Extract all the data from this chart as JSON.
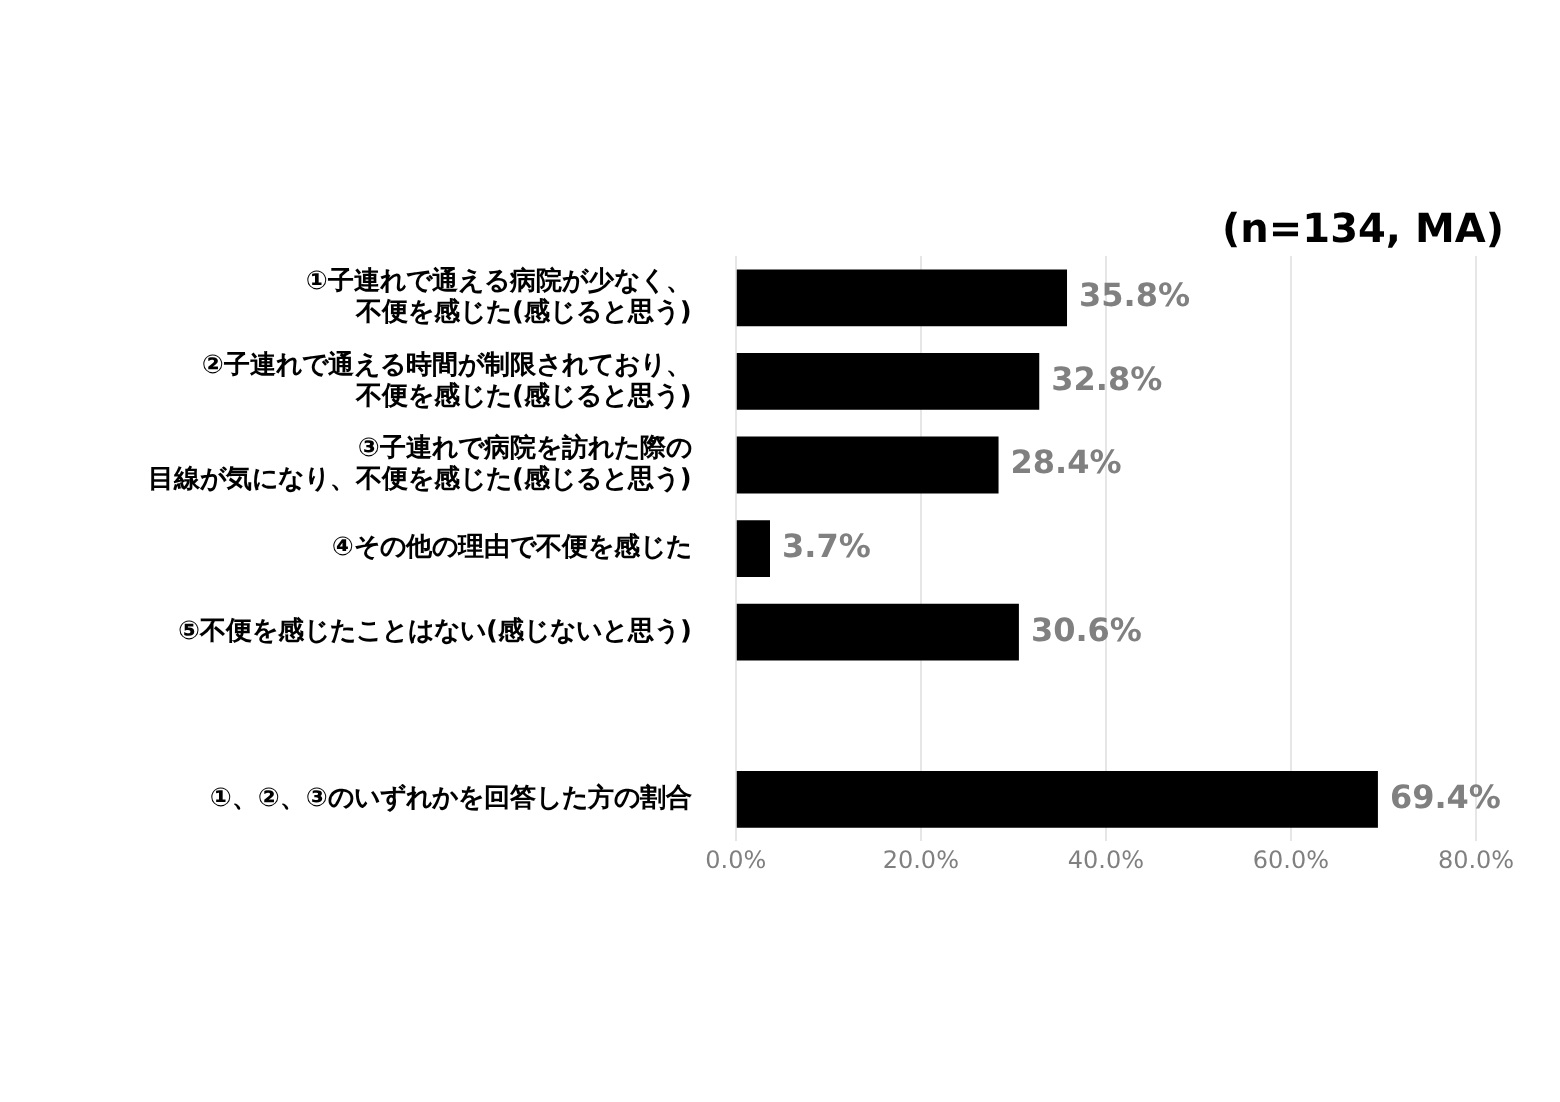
{
  "chart_data": {
    "type": "bar",
    "orientation": "horizontal",
    "categories": [
      "①子連れで通える病院が少なく、不便を感じた(感じると思う)",
      "②子連れで通える時間が制限されており、不便を感じた(感じると思う)",
      "③子連れで病院を訪れた際の目線が気になり、不便を感じた(感じると思う)",
      "④その他の理由で不便を感じた",
      "⑤不便を感じたことはない(感じないと思う)",
      null,
      "①、②、③のいずれかを回答した方の割合"
    ],
    "values": [
      35.8,
      32.8,
      28.4,
      3.7,
      30.6,
      null,
      69.4
    ],
    "value_labels": [
      "35.8%",
      "32.8%",
      "28.4%",
      "3.7%",
      "30.6%",
      null,
      "69.4%"
    ],
    "color": "#000000",
    "xlim": [
      0,
      80
    ],
    "xticks": [
      {
        "value": 0,
        "label": "0.0%"
      },
      {
        "value": 20,
        "label": "20.0%"
      },
      {
        "value": 40,
        "label": "40.0%"
      },
      {
        "value": 60,
        "label": "60.0%"
      },
      {
        "value": 80,
        "label": "80.0%"
      }
    ],
    "grid": "x",
    "legend": false,
    "annotations": [
      "(n=134, MA)"
    ]
  }
}
